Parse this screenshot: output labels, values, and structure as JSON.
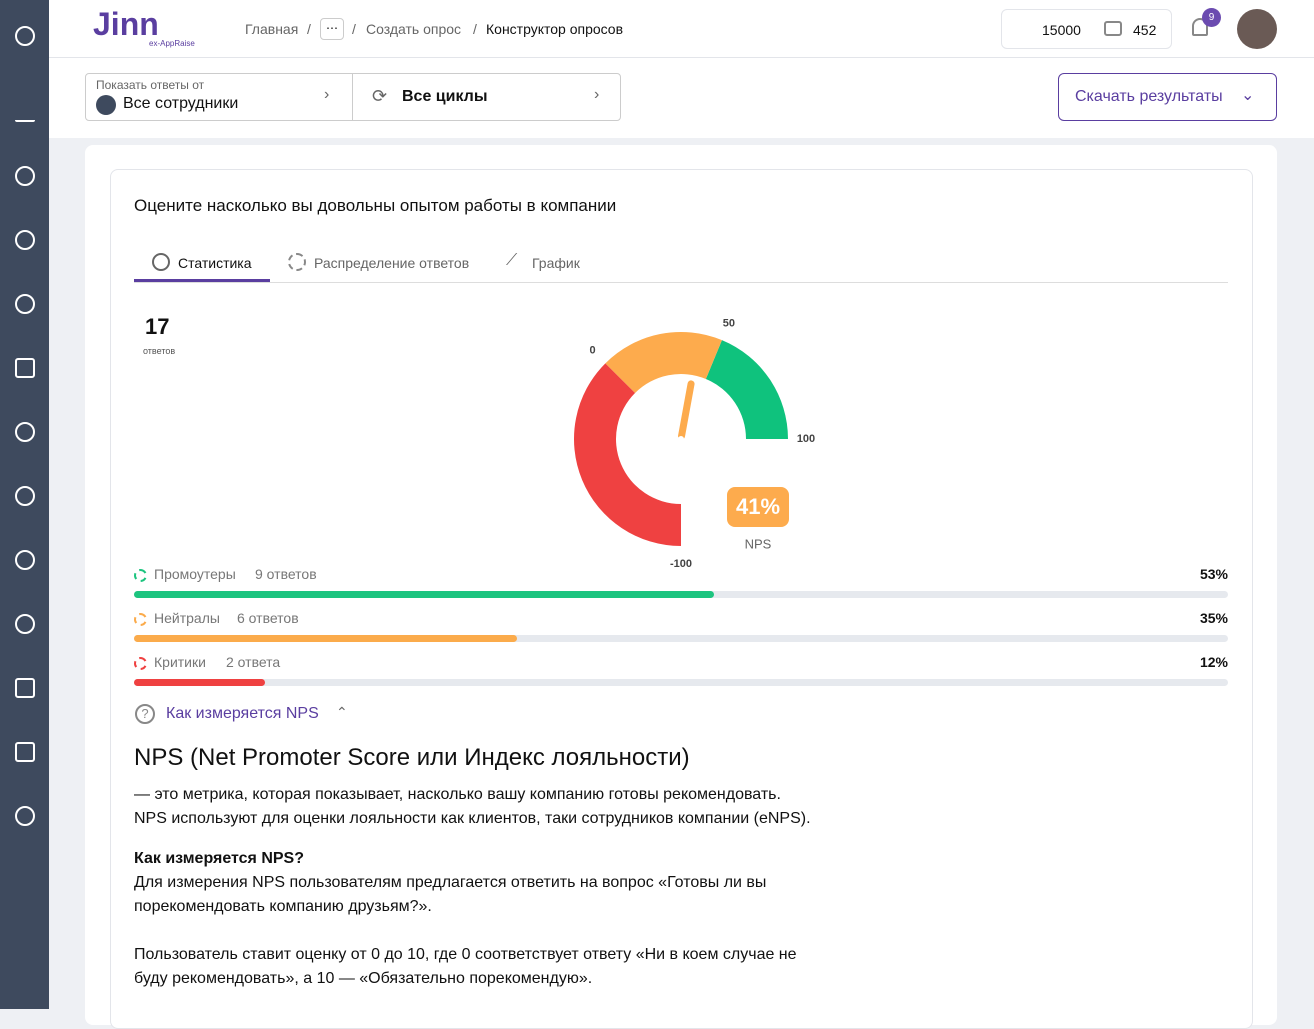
{
  "header": {
    "logo": "Jinn",
    "logo_sub": "ex-AppRaise",
    "breadcrumbs": [
      "Главная",
      "Создать опрос",
      "Конструктор опросов"
    ],
    "claps": "15000",
    "wallet": "452",
    "notifications": "9"
  },
  "filters": {
    "employees_label": "Показать ответы от",
    "employees": "Все сотрудники",
    "cycles": "Все циклы",
    "download": "Скачать результаты"
  },
  "question": {
    "title": "Оцените насколько вы довольны опытом работы в компании",
    "tabs": [
      "Статистика",
      "Распределение ответов",
      "График"
    ],
    "responses": {
      "count": "17",
      "label": "ответов"
    },
    "gauge": {
      "range": [
        -100,
        100
      ],
      "ticks": [
        0,
        50,
        100,
        -100
      ],
      "segments": [
        {
          "from": -100,
          "to": 0,
          "color": "#ef4141"
        },
        {
          "from": 0,
          "to": 50,
          "color": "#fdab4d"
        },
        {
          "from": 50,
          "to": 100,
          "color": "#0fc27d"
        }
      ],
      "value": 41,
      "value_label": "41%",
      "label": "NPS",
      "needle_color": "#fdab4d"
    },
    "groups": [
      {
        "name": "Промоутеры",
        "count": "9 ответов",
        "value": 53,
        "value_label": "53%",
        "color": "#1dc47f"
      },
      {
        "name": "Нейтралы",
        "count": "6 ответов",
        "value": 35,
        "value_label": "35%",
        "color": "#fbab4b"
      },
      {
        "name": "Критики",
        "count": "2 ответа",
        "value": 12,
        "value_label": "12%",
        "color": "#ef4141"
      }
    ],
    "help": {
      "toggle": "Как измеряется NPS",
      "heading": "NPS (Net Promoter Score или Индекс лояльности)",
      "intro": [
        "— это метрика, которая показывает, насколько вашу компанию готовы рекомендовать.",
        "NPS используют для оценки лояльности как клиентов, таки сотрудников компании (eNPS)."
      ],
      "subheading": "Как измеряется NPS?",
      "para1": [
        "Для измерения NPS пользователям предлагается ответить на вопрос «Готовы ли вы",
        "порекомендовать компанию друзьям?»."
      ],
      "para2": [
        "Пользователь ставит оценку от 0 до 10, где 0 соответствует ответу «Ни в коем случае не",
        "буду рекомендовать», а 10 — «Обязательно порекомендую»."
      ]
    }
  }
}
